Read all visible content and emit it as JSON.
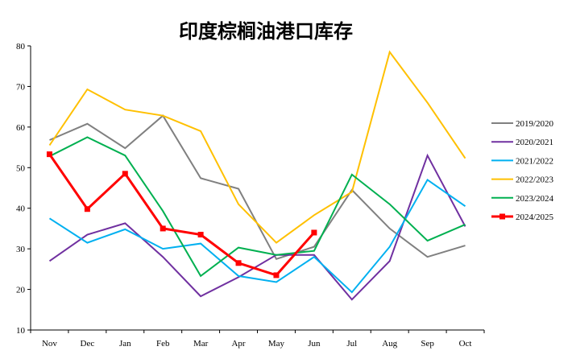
{
  "chart_data": {
    "type": "line",
    "title": "印度棕榈油港口库存",
    "xlabel": "",
    "ylabel": "",
    "categories": [
      "Nov",
      "Dec",
      "Jan",
      "Feb",
      "Mar",
      "Apr",
      "May",
      "Jun",
      "Jul",
      "Aug",
      "Sep",
      "Oct"
    ],
    "ylim": [
      10,
      80
    ],
    "yticks": [
      10,
      20,
      30,
      40,
      50,
      60,
      70,
      80
    ],
    "grid": false,
    "legend": "right",
    "series": [
      {
        "name": "2019/2020",
        "color": "#808080",
        "width": 2,
        "markers": false,
        "values": [
          56.8,
          60.8,
          54.8,
          62.8,
          47.4,
          44.8,
          27.5,
          30.5,
          44.5,
          35.0,
          28.0,
          30.8
        ]
      },
      {
        "name": "2020/2021",
        "color": "#7030a0",
        "width": 2,
        "markers": false,
        "values": [
          27.0,
          33.5,
          36.3,
          28.0,
          18.3,
          23.0,
          28.5,
          28.5,
          17.5,
          27.0,
          53.0,
          35.5
        ]
      },
      {
        "name": "2021/2022",
        "color": "#00b0f0",
        "width": 2,
        "markers": false,
        "values": [
          37.5,
          31.5,
          34.8,
          30.0,
          31.3,
          23.3,
          21.8,
          28.0,
          19.3,
          30.5,
          47.0,
          40.5
        ]
      },
      {
        "name": "2022/2023",
        "color": "#ffc000",
        "width": 2,
        "markers": false,
        "values": [
          55.5,
          69.3,
          64.3,
          62.8,
          59.0,
          41.0,
          31.5,
          38.3,
          44.0,
          78.5,
          66.0,
          52.3
        ]
      },
      {
        "name": "2023/2024",
        "color": "#00b050",
        "width": 2,
        "markers": false,
        "values": [
          52.8,
          57.5,
          53.0,
          39.3,
          23.3,
          30.3,
          28.5,
          29.5,
          48.3,
          41.0,
          32.0,
          36.0
        ]
      },
      {
        "name": "2024/2025",
        "color": "#ff0000",
        "width": 3,
        "markers": true,
        "values": [
          53.3,
          39.8,
          48.5,
          35.0,
          33.5,
          26.5,
          23.5,
          34.0,
          null,
          null,
          null,
          null
        ]
      }
    ]
  }
}
